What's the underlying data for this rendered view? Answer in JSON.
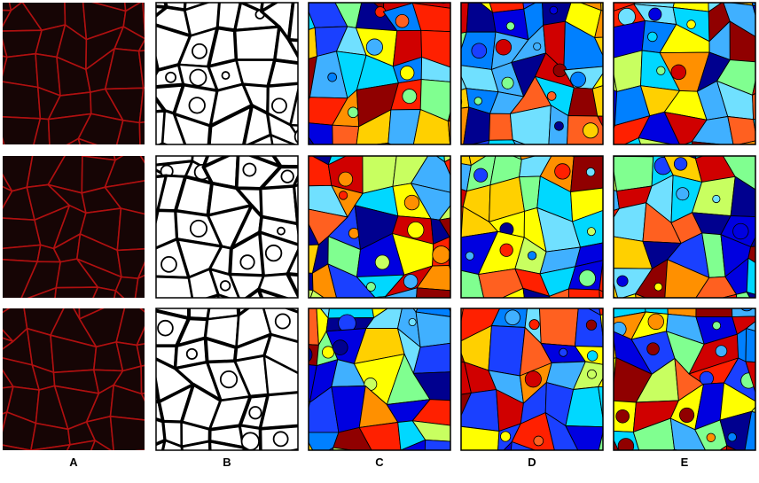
{
  "columns": [
    "A",
    "B",
    "C",
    "D",
    "E"
  ]
}
